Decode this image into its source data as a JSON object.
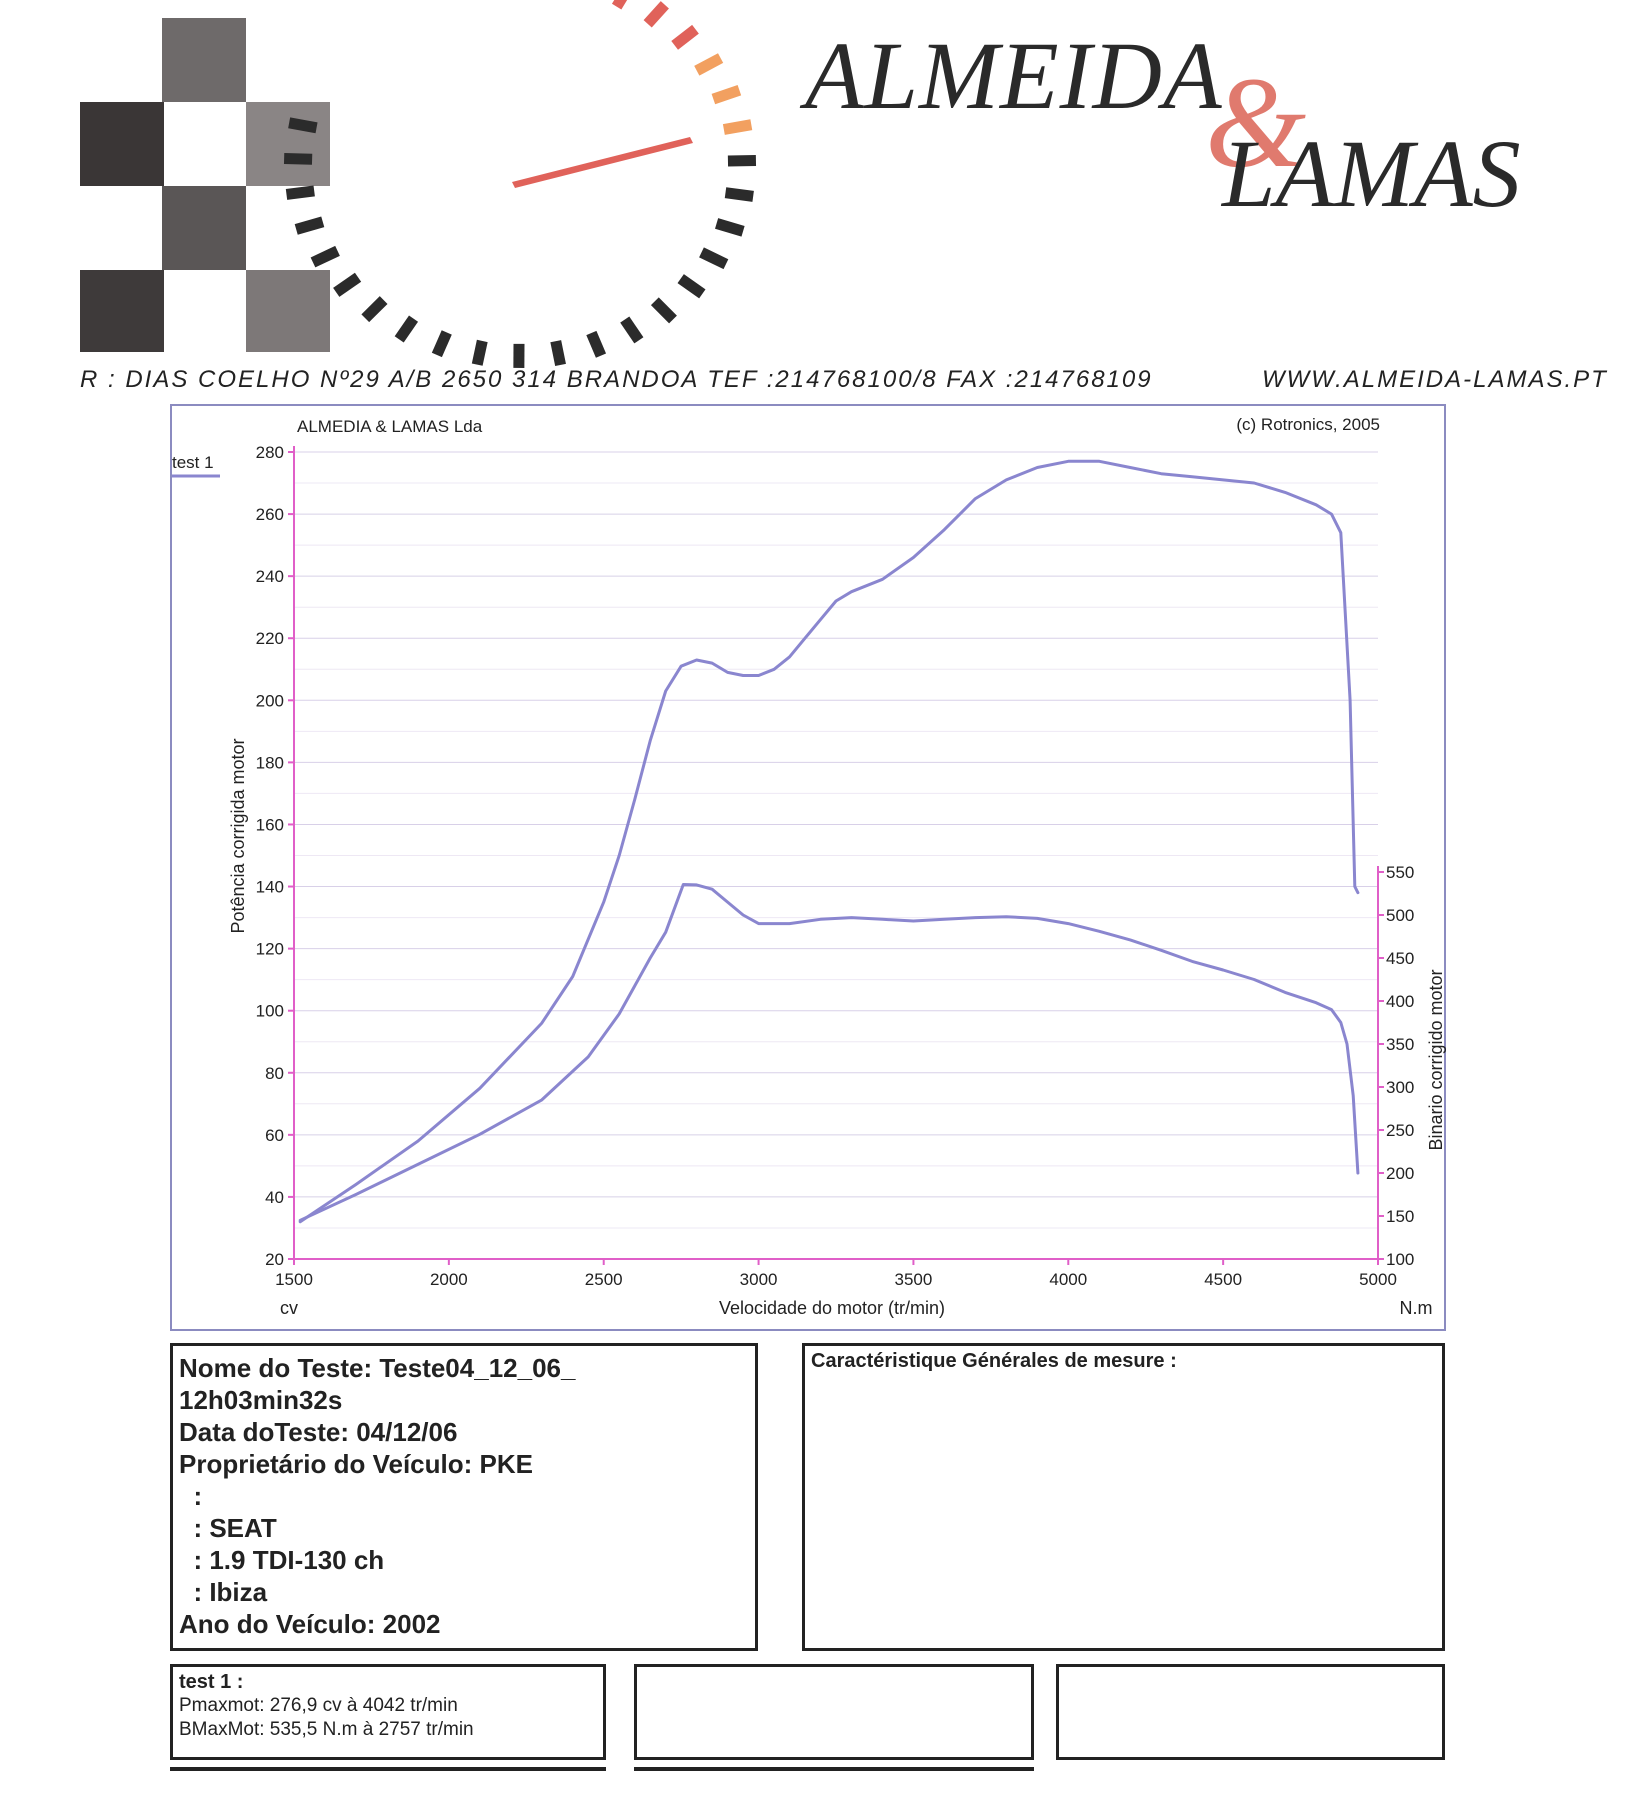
{
  "header": {
    "brand_line1": "ALMEIDA",
    "brand_amp": "&",
    "brand_line2": "LAMAS",
    "address": "R : DIAS COELHO Nº29 A/B 2650 314 BRANDOA  TEF :214768100/8  FAX :214768109",
    "website": "WWW.ALMEIDA-LAMAS.PT"
  },
  "chart_header": {
    "company": "ALMEDIA & LAMAS Lda",
    "copyright": "(c) Rotronics, 2005",
    "legend": "test 1"
  },
  "colors": {
    "curve": "#8a86cf",
    "axis": "#e05fc8",
    "grid": "#d8d0e8",
    "frame": "#8b8bc0",
    "logo_gauge_red": "#e0625a",
    "logo_gauge_orange": "#f2a060",
    "logo_gauge_dark": "#2b2b2b"
  },
  "chart_data": {
    "type": "line",
    "x_label": "Velocidade do motor (tr/min)",
    "x_unit_left": "cv",
    "x_unit_right": "N.m",
    "y_label_left": "Potência corrigida  motor",
    "y_label_right": "Binario corrigido motor",
    "xlim": [
      1500,
      5000
    ],
    "xticks": [
      1500,
      2000,
      2500,
      3000,
      3500,
      4000,
      4500,
      5000
    ],
    "ylim_left": [
      20,
      280
    ],
    "yticks_left": [
      20,
      40,
      60,
      80,
      100,
      120,
      140,
      160,
      180,
      200,
      220,
      240,
      260,
      280
    ],
    "ylim_right": [
      100,
      550
    ],
    "yticks_right": [
      100,
      150,
      200,
      250,
      300,
      350,
      400,
      450,
      500,
      550
    ],
    "series": [
      {
        "axis": "left",
        "points": [
          [
            1520,
            32
          ],
          [
            1700,
            44
          ],
          [
            1900,
            58
          ],
          [
            2100,
            75
          ],
          [
            2300,
            96
          ],
          [
            2400,
            111
          ],
          [
            2500,
            135
          ],
          [
            2550,
            150
          ],
          [
            2600,
            168
          ],
          [
            2650,
            187
          ],
          [
            2700,
            203
          ],
          [
            2750,
            211
          ],
          [
            2800,
            213
          ],
          [
            2850,
            212
          ],
          [
            2900,
            209
          ],
          [
            2950,
            208
          ],
          [
            3000,
            208
          ],
          [
            3050,
            210
          ],
          [
            3100,
            214
          ],
          [
            3150,
            220
          ],
          [
            3200,
            226
          ],
          [
            3250,
            232
          ],
          [
            3300,
            235
          ],
          [
            3400,
            239
          ],
          [
            3500,
            246
          ],
          [
            3600,
            255
          ],
          [
            3700,
            265
          ],
          [
            3800,
            271
          ],
          [
            3900,
            275
          ],
          [
            4000,
            277
          ],
          [
            4100,
            277
          ],
          [
            4200,
            275
          ],
          [
            4300,
            273
          ],
          [
            4400,
            272
          ],
          [
            4500,
            271
          ],
          [
            4600,
            270
          ],
          [
            4700,
            267
          ],
          [
            4800,
            263
          ],
          [
            4850,
            260
          ],
          [
            4880,
            254
          ],
          [
            4910,
            200
          ],
          [
            4925,
            140
          ],
          [
            4935,
            138
          ]
        ]
      },
      {
        "axis": "right",
        "points": [
          [
            1520,
            145
          ],
          [
            1700,
            175
          ],
          [
            1900,
            210
          ],
          [
            2100,
            245
          ],
          [
            2300,
            285
          ],
          [
            2450,
            335
          ],
          [
            2550,
            385
          ],
          [
            2650,
            450
          ],
          [
            2700,
            480
          ],
          [
            2757,
            535.5
          ],
          [
            2800,
            535
          ],
          [
            2850,
            530
          ],
          [
            2900,
            515
          ],
          [
            2950,
            500
          ],
          [
            3000,
            490
          ],
          [
            3100,
            490
          ],
          [
            3200,
            495
          ],
          [
            3300,
            497
          ],
          [
            3400,
            495
          ],
          [
            3500,
            493
          ],
          [
            3600,
            495
          ],
          [
            3700,
            497
          ],
          [
            3800,
            498
          ],
          [
            3900,
            496
          ],
          [
            4000,
            490
          ],
          [
            4100,
            481
          ],
          [
            4200,
            471
          ],
          [
            4300,
            459
          ],
          [
            4400,
            446
          ],
          [
            4500,
            436
          ],
          [
            4600,
            425
          ],
          [
            4700,
            410
          ],
          [
            4800,
            398
          ],
          [
            4850,
            390
          ],
          [
            4880,
            375
          ],
          [
            4900,
            350
          ],
          [
            4920,
            290
          ],
          [
            4935,
            200
          ]
        ]
      }
    ]
  },
  "info": {
    "lines": [
      "Nome do Teste: Teste04_12_06_",
      "12h03min32s",
      "Data doTeste: 04/12/06",
      "Proprietário do Veículo: PKE",
      "  :",
      "  : SEAT",
      "  : 1.9 TDI-130 ch",
      "  : Ibiza",
      "Ano do Veículo: 2002"
    ]
  },
  "characteristics": {
    "title": "Caractéristique Générales de mesure :"
  },
  "results": {
    "title": "test 1 :",
    "line1": "Pmaxmot: 276,9 cv à 4042 tr/min",
    "line2": "BMaxMot: 535,5 N.m à 2757 tr/min"
  }
}
